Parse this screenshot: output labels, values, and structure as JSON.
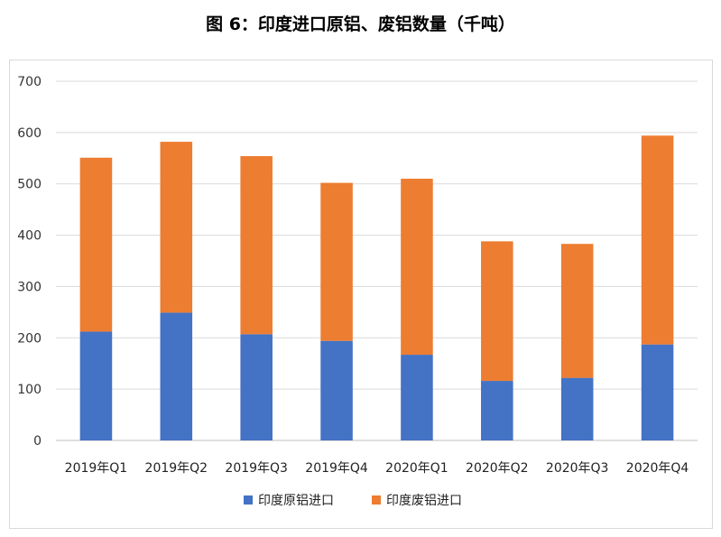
{
  "title": "图 6：印度进口原铝、废铝数量（千吨）",
  "chart_data": {
    "type": "bar",
    "stacked": true,
    "title": "图 6：印度进口原铝、废铝数量（千吨）",
    "categories": [
      "2019年Q1",
      "2019年Q2",
      "2019年Q3",
      "2019年Q4",
      "2020年Q1",
      "2020年Q2",
      "2020年Q3",
      "2020年Q4"
    ],
    "series": [
      {
        "name": "印度原铝进口",
        "color": "#4472c4",
        "values": [
          212,
          249,
          207,
          194,
          167,
          116,
          122,
          187
        ]
      },
      {
        "name": "印度废铝进口",
        "color": "#ed7d31",
        "values": [
          339,
          333,
          347,
          308,
          343,
          272,
          261,
          407
        ]
      }
    ],
    "ylim": [
      0,
      700
    ],
    "yticks": [
      0,
      100,
      200,
      300,
      400,
      500,
      600,
      700
    ],
    "grid": true,
    "legend": "bottom",
    "xlabel": "",
    "ylabel": ""
  }
}
